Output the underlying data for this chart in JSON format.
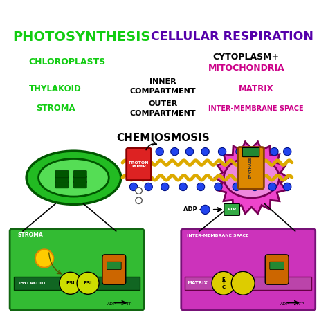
{
  "bg_color": "#ffffff",
  "title_photosynthesis": "PHOTOSYNTHESIS",
  "title_cellular": "CELLULAR RESPIRATION",
  "title_photo_color": "#11cc11",
  "title_cellular_color": "#5500aa",
  "chloroplasts_label": "CHLOROPLASTS",
  "chloroplasts_color": "#11cc11",
  "thylakoid_label": "THYLAKOID",
  "thylakoid_color": "#11cc11",
  "stroma_label": "STROMA",
  "stroma_color": "#11cc11",
  "cytoplasm_label": "CYTOPLASM+",
  "mitochondria_label": "MITOCHONDRIA",
  "cytoplasm_color": "#000000",
  "mitochondria_color": "#cc0088",
  "matrix_label": "MATRIX",
  "matrix_color": "#cc0088",
  "inter_membrane_label": "INTER-MEMBRANE SPACE",
  "inter_membrane_color": "#cc0088",
  "inner_compartment": "INNER\nCOMPARTMENT",
  "outer_compartment": "OUTER\nCOMPARTMENT",
  "compartment_color": "#000000",
  "chemiosmosis_label": "CHEMIOSMOSIS",
  "chemiosmosis_color": "#000000",
  "chloroplast_outer_color": "#22bb22",
  "chloroplast_inner_color": "#44cc44",
  "chloroplast_dark_color": "#116611",
  "mitochondria_outer_color": "#ee44cc",
  "mitochondria_inner_color": "#dd88ee",
  "left_box_bg": "#33bb33",
  "left_box_border": "#116611",
  "right_box_bg": "#cc33bb",
  "right_box_border": "#771177",
  "thylakoid_band_color": "#116622",
  "matrix_band_color": "#bb44aa"
}
